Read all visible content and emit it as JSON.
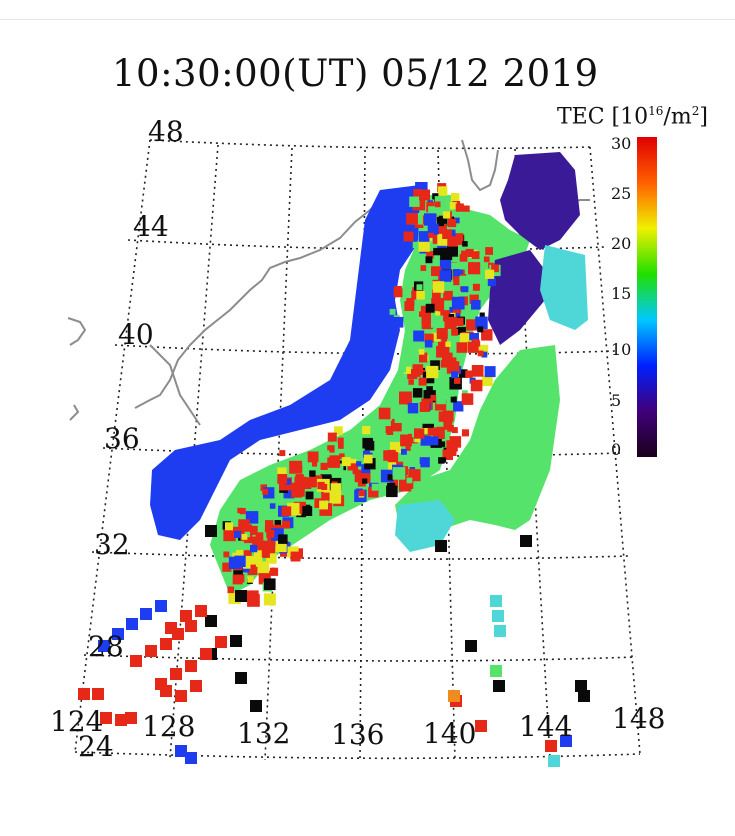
{
  "title": "10:30:00(UT)  05/12 2019",
  "colorbar": {
    "label_prefix": "TEC [10",
    "label_exp": "16",
    "label_suffix": "/m",
    "label_exp2": "2",
    "label_close": "]",
    "ticks": [
      "30",
      "25",
      "20",
      "15",
      "10",
      "5",
      "0"
    ],
    "range": [
      0,
      30
    ],
    "colors": [
      "#1a001a",
      "#40007a",
      "#0020ff",
      "#00c8ff",
      "#20e000",
      "#f0f000",
      "#ff6000",
      "#e00000"
    ]
  },
  "lat_labels": [
    "48",
    "44",
    "40",
    "36",
    "32",
    "28",
    "24"
  ],
  "lon_labels": [
    "124",
    "128",
    "132",
    "136",
    "140",
    "144",
    "148"
  ],
  "map": {
    "grid": "dotted",
    "coastline_color": "#8c8c8c",
    "tec_colors": {
      "low_purple": "#3a1a96",
      "blue": "#1e3cf0",
      "cyan": "#4fd7d7",
      "green": "#55e36b",
      "yellow": "#e6e61e",
      "red": "#e62818",
      "black": "#0a0a0a"
    }
  }
}
